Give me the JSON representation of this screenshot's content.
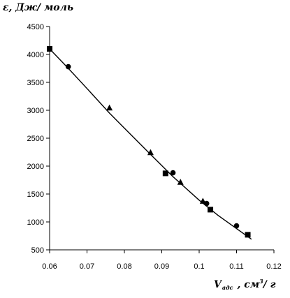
{
  "chart_data": {
    "type": "scatter",
    "ylabel": "ε, Дж/ моль",
    "xlabel": {
      "main": "V",
      "subscript": "адс",
      "unit_main": ", см",
      "unit_sup": "3",
      "unit_tail": "/ г"
    },
    "xlim": [
      0.06,
      0.12
    ],
    "ylim": [
      500,
      4500
    ],
    "x_ticks": [
      "0.06",
      "0.07",
      "0.08",
      "0.09",
      "0.1",
      "0.11",
      "0.12"
    ],
    "x_tick_values": [
      0.06,
      0.07,
      0.08,
      0.09,
      0.1,
      0.11,
      0.12
    ],
    "y_ticks": [
      "500",
      "1000",
      "1500",
      "2000",
      "2500",
      "3000",
      "3500",
      "4000",
      "4500"
    ],
    "y_tick_values": [
      500,
      1000,
      1500,
      2000,
      2500,
      3000,
      3500,
      4000,
      4500
    ],
    "grid": false,
    "series": [
      {
        "marker": "square",
        "color": "#000000",
        "points": [
          [
            0.06,
            4100
          ],
          [
            0.091,
            1870
          ],
          [
            0.103,
            1220
          ],
          [
            0.113,
            770
          ]
        ]
      },
      {
        "marker": "circle",
        "color": "#000000",
        "points": [
          [
            0.065,
            3780
          ],
          [
            0.093,
            1880
          ],
          [
            0.102,
            1330
          ],
          [
            0.11,
            930
          ]
        ]
      },
      {
        "marker": "triangle",
        "color": "#000000",
        "points": [
          [
            0.076,
            3040
          ],
          [
            0.087,
            2240
          ],
          [
            0.095,
            1710
          ],
          [
            0.101,
            1370
          ]
        ]
      }
    ],
    "fit_line": [
      [
        0.06,
        4100
      ],
      [
        0.065,
        3750
      ],
      [
        0.07,
        3390
      ],
      [
        0.076,
        2950
      ],
      [
        0.08,
        2680
      ],
      [
        0.087,
        2210
      ],
      [
        0.093,
        1810
      ],
      [
        0.1,
        1390
      ],
      [
        0.105,
        1120
      ],
      [
        0.11,
        880
      ],
      [
        0.114,
        690
      ]
    ]
  }
}
